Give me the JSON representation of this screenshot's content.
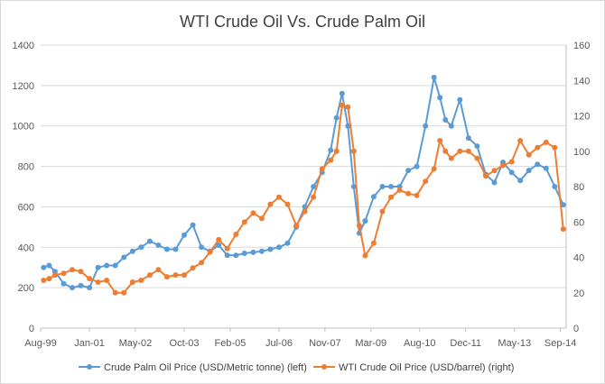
{
  "chart_data": {
    "type": "line",
    "title": "WTI Crude Oil Vs. Crude Palm Oil",
    "x_range_years": [
      1999.583,
      2014.833
    ],
    "x_ticks": [
      {
        "label": "Aug-99",
        "t": 1999.583
      },
      {
        "label": "Jan-01",
        "t": 2001.0
      },
      {
        "label": "May-02",
        "t": 2002.333
      },
      {
        "label": "Oct-03",
        "t": 2003.75
      },
      {
        "label": "Feb-05",
        "t": 2005.083
      },
      {
        "label": "Jul-06",
        "t": 2006.5
      },
      {
        "label": "Nov-07",
        "t": 2007.833
      },
      {
        "label": "Mar-09",
        "t": 2009.167
      },
      {
        "label": "Aug-10",
        "t": 2010.583
      },
      {
        "label": "Dec-11",
        "t": 2011.917
      },
      {
        "label": "May-13",
        "t": 2013.333
      },
      {
        "label": "Sep-14",
        "t": 2014.667
      }
    ],
    "y_left": {
      "min": 0,
      "max": 1400,
      "step": 200,
      "ticks": [
        "0",
        "200",
        "400",
        "600",
        "800",
        "1000",
        "1200",
        "1400"
      ]
    },
    "y_right": {
      "min": 0,
      "max": 160,
      "step": 20,
      "ticks": [
        "0",
        "20",
        "40",
        "60",
        "80",
        "100",
        "120",
        "140",
        "160"
      ]
    },
    "series": [
      {
        "name": "Crude Palm Oil Price (USD/Metric tonne) (left)",
        "axis": "left",
        "color": "#5b9bd5",
        "x": [
          1999.67,
          1999.83,
          2000.0,
          2000.25,
          2000.5,
          2000.75,
          2001.0,
          2001.25,
          2001.5,
          2001.75,
          2002.0,
          2002.25,
          2002.5,
          2002.75,
          2003.0,
          2003.25,
          2003.5,
          2003.75,
          2004.0,
          2004.25,
          2004.5,
          2004.75,
          2005.0,
          2005.25,
          2005.5,
          2005.75,
          2006.0,
          2006.25,
          2006.5,
          2006.75,
          2007.0,
          2007.25,
          2007.5,
          2007.75,
          2008.0,
          2008.17,
          2008.33,
          2008.5,
          2008.67,
          2008.83,
          2009.0,
          2009.25,
          2009.5,
          2009.75,
          2010.0,
          2010.25,
          2010.5,
          2010.75,
          2011.0,
          2011.17,
          2011.33,
          2011.5,
          2011.75,
          2012.0,
          2012.25,
          2012.5,
          2012.75,
          2013.0,
          2013.25,
          2013.5,
          2013.75,
          2014.0,
          2014.25,
          2014.5,
          2014.75
        ],
        "y": [
          300,
          310,
          280,
          220,
          200,
          210,
          200,
          300,
          310,
          310,
          350,
          380,
          400,
          430,
          410,
          390,
          390,
          460,
          510,
          400,
          380,
          410,
          360,
          360,
          370,
          375,
          380,
          390,
          400,
          420,
          500,
          600,
          700,
          770,
          880,
          1040,
          1160,
          1000,
          700,
          470,
          530,
          650,
          700,
          700,
          700,
          780,
          800,
          1000,
          1240,
          1140,
          1030,
          1000,
          1130,
          940,
          900,
          760,
          720,
          820,
          770,
          730,
          780,
          810,
          790,
          700,
          610
        ]
      },
      {
        "name": "WTI Crude Oil Price (USD/barrel) (right)",
        "axis": "right",
        "color": "#ed7d31",
        "x": [
          1999.67,
          1999.83,
          2000.0,
          2000.25,
          2000.5,
          2000.75,
          2001.0,
          2001.25,
          2001.5,
          2001.75,
          2002.0,
          2002.25,
          2002.5,
          2002.75,
          2003.0,
          2003.25,
          2003.5,
          2003.75,
          2004.0,
          2004.25,
          2004.5,
          2004.75,
          2005.0,
          2005.25,
          2005.5,
          2005.75,
          2006.0,
          2006.25,
          2006.5,
          2006.75,
          2007.0,
          2007.25,
          2007.5,
          2007.75,
          2008.0,
          2008.17,
          2008.33,
          2008.5,
          2008.67,
          2008.83,
          2009.0,
          2009.25,
          2009.5,
          2009.75,
          2010.0,
          2010.25,
          2010.5,
          2010.75,
          2011.0,
          2011.17,
          2011.33,
          2011.5,
          2011.75,
          2012.0,
          2012.25,
          2012.5,
          2012.75,
          2013.0,
          2013.25,
          2013.5,
          2013.75,
          2014.0,
          2014.25,
          2014.5,
          2014.75
        ],
        "y": [
          27,
          28,
          30,
          31,
          33,
          32,
          28,
          26,
          27,
          20,
          20,
          26,
          27,
          30,
          33,
          29,
          30,
          30,
          34,
          37,
          43,
          50,
          45,
          53,
          60,
          65,
          62,
          70,
          74,
          70,
          58,
          66,
          74,
          90,
          95,
          100,
          126,
          125,
          100,
          58,
          41,
          48,
          66,
          74,
          78,
          76,
          75,
          83,
          90,
          106,
          100,
          96,
          100,
          100,
          96,
          86,
          89,
          92,
          94,
          106,
          98,
          102,
          105,
          102,
          56
        ]
      }
    ]
  }
}
